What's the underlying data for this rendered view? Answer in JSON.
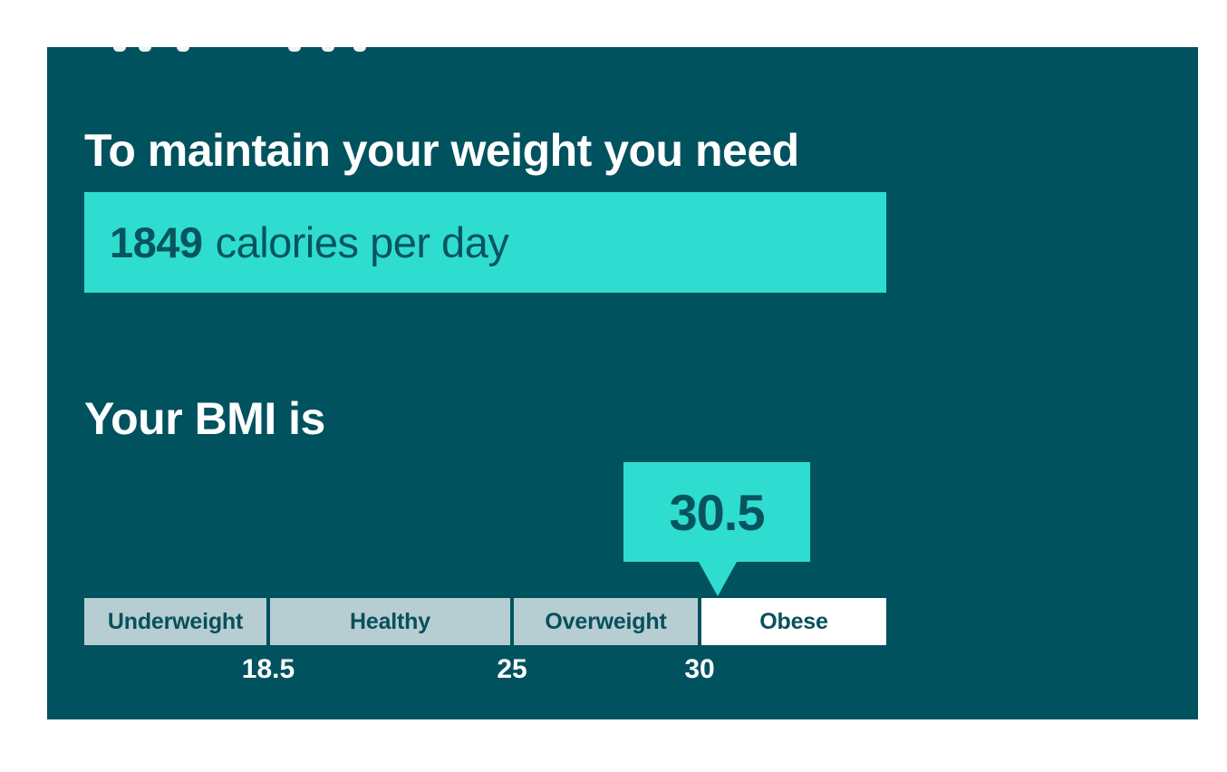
{
  "colors": {
    "panel_background": "#00525e",
    "accent_turquoise": "#2eddd0",
    "segment_gray": "#b6cdd2",
    "segment_highlight": "#ffffff",
    "dark_teal_text": "#07545f",
    "white_text": "#ffffff"
  },
  "maintain": {
    "heading": "To maintain your weight you need",
    "calories_value": "1849",
    "calories_unit": "calories per day"
  },
  "bmi": {
    "heading": "Your BMI is",
    "value": "30.5",
    "scale": {
      "segments": [
        {
          "label": "Underweight",
          "highlighted": false
        },
        {
          "label": "Healthy",
          "highlighted": false
        },
        {
          "label": "Overweight",
          "highlighted": false
        },
        {
          "label": "Obese",
          "highlighted": true
        }
      ],
      "ticks": [
        "18.5",
        "25",
        "30"
      ]
    }
  },
  "chart_data": {
    "type": "linear-gauge",
    "title": "Your BMI is",
    "value": 30.5,
    "categories": [
      "Underweight",
      "Healthy",
      "Overweight",
      "Obese"
    ],
    "boundaries": [
      18.5,
      25,
      30
    ],
    "axis_range_approx": [
      13.6,
      35
    ],
    "highlighted_category": "Obese",
    "tick_labels": [
      "18.5",
      "25",
      "30"
    ],
    "legend": "none",
    "grid": false
  }
}
